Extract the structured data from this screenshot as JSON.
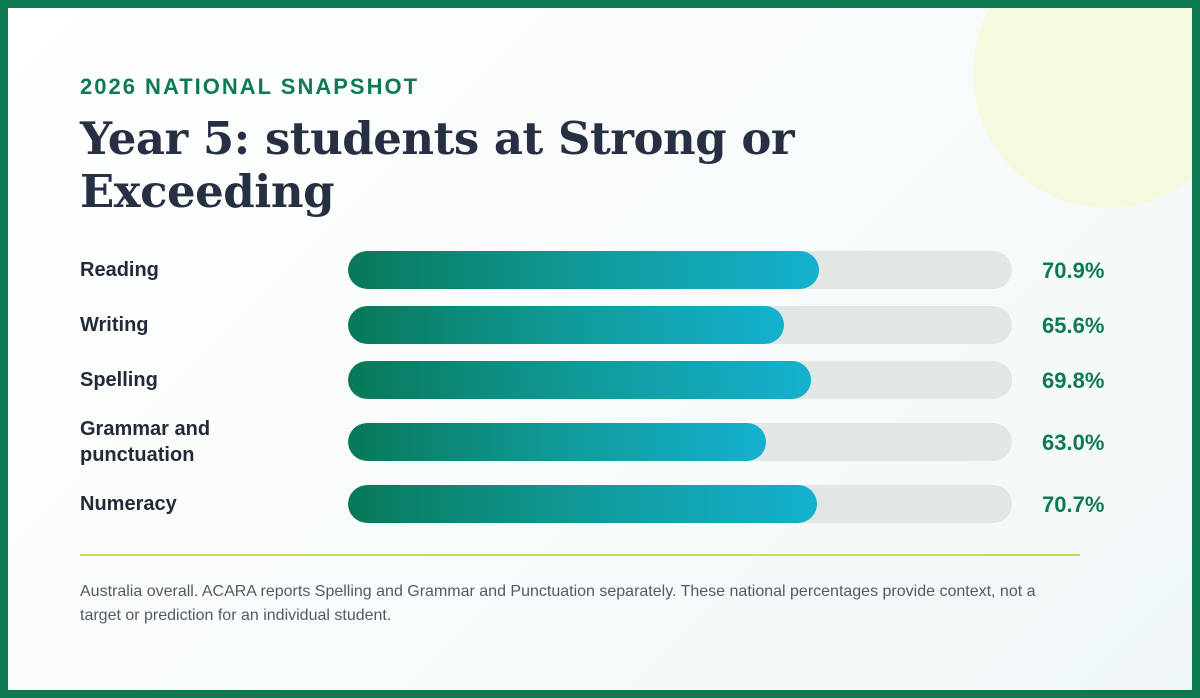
{
  "eyebrow": "2026 NATIONAL SNAPSHOT",
  "title": "Year 5: students at Strong or Exceeding",
  "footnote": "Australia overall. ACARA reports Spelling and Grammar and Punctuation separately. These national percentages provide context, not a target or prediction for an individual student.",
  "colors": {
    "accent": "#0e7a52",
    "bar_start": "#087858",
    "bar_end": "#14b1cf",
    "track": "#e0e7e5",
    "divider": "#c6da6a"
  },
  "chart_data": {
    "type": "bar",
    "orientation": "horizontal",
    "categories": [
      "Reading",
      "Writing",
      "Spelling",
      "Grammar and punctuation",
      "Numeracy"
    ],
    "values": [
      70.9,
      65.6,
      69.8,
      63.0,
      70.7
    ],
    "value_labels": [
      "70.9%",
      "65.6%",
      "69.8%",
      "63.0%",
      "70.7%"
    ],
    "unit": "%",
    "xlim": [
      0,
      100
    ],
    "grid": false,
    "legend": "none"
  }
}
